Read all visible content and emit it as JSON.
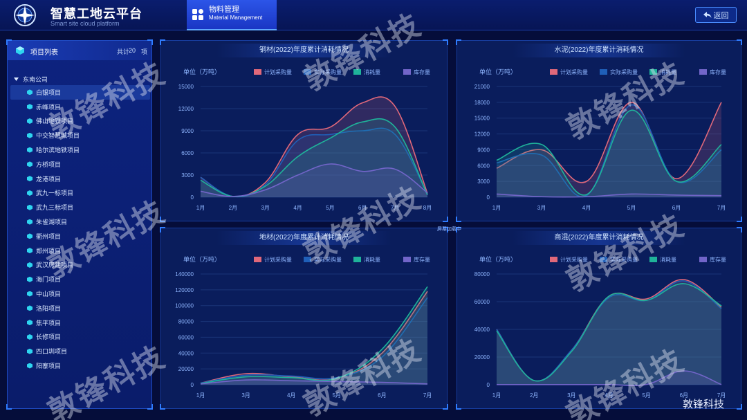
{
  "header": {
    "title": "智慧工地云平台",
    "subtitle": "Smart site cloud platform",
    "menu_tab_label": "物料管理",
    "menu_tab_sub": "Material Management",
    "back_label": "返回"
  },
  "left_panel": {
    "title": "项目列表",
    "total_label": "共计",
    "total_count": "20",
    "total_unit": "项",
    "root_label": "东南公司",
    "items": [
      {
        "label": "白银项目",
        "selected": true
      },
      {
        "label": "赤峰项目"
      },
      {
        "label": "佛山地铁项目"
      },
      {
        "label": "中交智慧城项目"
      },
      {
        "label": "哈尔滨地铁项目"
      },
      {
        "label": "方桥项目"
      },
      {
        "label": "龙港项目"
      },
      {
        "label": "武九一标项目"
      },
      {
        "label": "武九三标项目"
      },
      {
        "label": "朱雀湖项目"
      },
      {
        "label": "衢州项目"
      },
      {
        "label": "郑州项目"
      },
      {
        "label": "武汉房建项目"
      },
      {
        "label": "海门项目"
      },
      {
        "label": "中山项目"
      },
      {
        "label": "洛阳项目"
      },
      {
        "label": "焦平项目"
      },
      {
        "label": "长修项目"
      },
      {
        "label": "四口圳项目"
      },
      {
        "label": "阳寨项目"
      }
    ]
  },
  "status_text": "屏幕加载中",
  "corner_watermark": "敦锋科技",
  "watermark_text": "敦锋科技",
  "colors": {
    "plan": "#e0687a",
    "actual": "#1f5fb8",
    "consumed": "#1fb39a",
    "stock": "#7265c9"
  },
  "chart_data": [
    {
      "type": "area",
      "title": "钢材(2022)年度累计消耗情况",
      "ylabel": "单位（万吨）",
      "legend": [
        "计划采购量",
        "实际采购量",
        "消耗量",
        "库存量"
      ],
      "categories": [
        "1月",
        "2月",
        "3月",
        "4月",
        "5月",
        "6月",
        "7月",
        "8月"
      ],
      "ylim": [
        0,
        15000
      ],
      "yticks": [
        0,
        3000,
        6000,
        9000,
        12000,
        15000
      ],
      "series": [
        {
          "name": "计划采购量",
          "values": [
            2700,
            100,
            2000,
            8500,
            9500,
            12800,
            12300,
            500
          ]
        },
        {
          "name": "实际采购量",
          "values": [
            2700,
            100,
            1700,
            7700,
            8500,
            9000,
            8500,
            400
          ]
        },
        {
          "name": "消耗量",
          "values": [
            2300,
            100,
            1500,
            5500,
            8000,
            10200,
            9500,
            300
          ]
        },
        {
          "name": "库存量",
          "values": [
            800,
            100,
            1000,
            3000,
            4500,
            3500,
            3800,
            600
          ]
        }
      ]
    },
    {
      "type": "area",
      "title": "水泥(2022)年度累计消耗情况",
      "ylabel": "单位（万吨）",
      "legend": [
        "计划采购量",
        "实际采购量",
        "消耗量",
        "库存量"
      ],
      "categories": [
        "1月",
        "3月",
        "4月",
        "5月",
        "6月",
        "7月"
      ],
      "ylim": [
        0,
        21000
      ],
      "yticks": [
        0,
        3000,
        6000,
        9000,
        12000,
        15000,
        18000,
        21000
      ],
      "series": [
        {
          "name": "计划采购量",
          "values": [
            5500,
            9000,
            3000,
            18000,
            3500,
            18000
          ]
        },
        {
          "name": "实际采购量",
          "values": [
            6500,
            8000,
            300,
            17500,
            3000,
            9000
          ]
        },
        {
          "name": "消耗量",
          "values": [
            7000,
            10000,
            500,
            16500,
            3000,
            10000
          ]
        },
        {
          "name": "库存量",
          "values": [
            600,
            100,
            100,
            600,
            400,
            300
          ]
        }
      ]
    },
    {
      "type": "area",
      "title": "地材(2022)年度累计消耗情况",
      "ylabel": "单位（万吨）",
      "legend": [
        "计划采购量",
        "实际采购量",
        "消耗量",
        "库存量"
      ],
      "categories": [
        "1月",
        "3月",
        "4月",
        "5月",
        "6月",
        "7月"
      ],
      "ylim": [
        0,
        140000
      ],
      "yticks": [
        0,
        20000,
        40000,
        60000,
        80000,
        100000,
        120000,
        140000
      ],
      "series": [
        {
          "name": "计划采购量",
          "values": [
            2000,
            14000,
            10000,
            8000,
            40000,
            118000
          ]
        },
        {
          "name": "实际采购量",
          "values": [
            2000,
            12000,
            11000,
            9000,
            35000,
            110000
          ]
        },
        {
          "name": "消耗量",
          "values": [
            1500,
            10000,
            9000,
            8000,
            45000,
            124000
          ]
        },
        {
          "name": "库存量",
          "values": [
            1000,
            6000,
            5000,
            4000,
            3000,
            1000
          ]
        }
      ]
    },
    {
      "type": "area",
      "title": "商混(2022)年度累计消耗情况",
      "ylabel": "单位（万吨）",
      "legend": [
        "计划采购量",
        "实际采购量",
        "消耗量",
        "库存量"
      ],
      "categories": [
        "1月",
        "2月",
        "3月",
        "4月",
        "5月",
        "6月",
        "7月"
      ],
      "ylim": [
        0,
        80000
      ],
      "yticks": [
        0,
        20000,
        40000,
        60000,
        80000
      ],
      "series": [
        {
          "name": "计划采购量",
          "values": [
            40000,
            3000,
            25000,
            64000,
            62000,
            76000,
            56000
          ]
        },
        {
          "name": "实际采购量",
          "values": [
            40000,
            3000,
            25000,
            63000,
            61000,
            75000,
            55000
          ]
        },
        {
          "name": "消耗量",
          "values": [
            39000,
            3000,
            24000,
            64000,
            61000,
            73000,
            57000
          ]
        },
        {
          "name": "库存量",
          "values": [
            100,
            100,
            100,
            100,
            200,
            10000,
            100
          ]
        }
      ]
    }
  ]
}
